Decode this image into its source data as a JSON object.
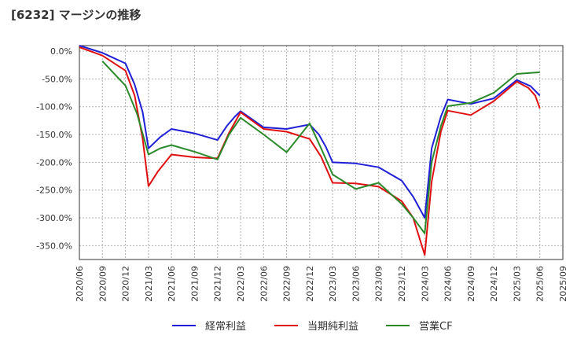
{
  "chart_data": {
    "type": "line",
    "title": "[6232]  マージンの推移",
    "xlabel": "",
    "ylabel": "",
    "ylim": [
      -375,
      10
    ],
    "yticks": [
      0,
      -50,
      -100,
      -150,
      -200,
      -250,
      -300,
      -350
    ],
    "ytick_labels": [
      "0.0%",
      "-50.0%",
      "-100.0%",
      "-150.0%",
      "-200.0%",
      "-250.0%",
      "-300.0%",
      "-350.0%"
    ],
    "x_ticks": [
      "2020/06",
      "2020/09",
      "2020/12",
      "2021/03",
      "2021/06",
      "2021/09",
      "2021/12",
      "2022/03",
      "2022/06",
      "2022/09",
      "2022/12",
      "2023/03",
      "2023/06",
      "2023/09",
      "2023/12",
      "2024/03",
      "2024/06",
      "2024/09",
      "2024/12",
      "2025/03",
      "2025/06",
      "2025/09"
    ],
    "grid": true,
    "legend_position": "bottom",
    "series": [
      {
        "name": "経常利益",
        "color": "#1f1fd6",
        "points": [
          [
            0,
            10
          ],
          [
            1,
            -3
          ],
          [
            2,
            -22
          ],
          [
            2.4,
            -60
          ],
          [
            2.75,
            -110
          ],
          [
            3,
            -175
          ],
          [
            3.5,
            -155
          ],
          [
            4,
            -140
          ],
          [
            5,
            -148
          ],
          [
            6,
            -160
          ],
          [
            6.4,
            -135
          ],
          [
            6.75,
            -118
          ],
          [
            7,
            -108
          ],
          [
            8,
            -137
          ],
          [
            9,
            -140
          ],
          [
            10,
            -132
          ],
          [
            10.4,
            -150
          ],
          [
            10.7,
            -172
          ],
          [
            11,
            -200
          ],
          [
            12,
            -202
          ],
          [
            13,
            -209
          ],
          [
            14,
            -233
          ],
          [
            14.5,
            -262
          ],
          [
            15,
            -300
          ],
          [
            15.3,
            -175
          ],
          [
            15.7,
            -118
          ],
          [
            16,
            -87
          ],
          [
            17,
            -95
          ],
          [
            18,
            -85
          ],
          [
            19,
            -52
          ],
          [
            19.6,
            -63
          ],
          [
            20,
            -80
          ]
        ]
      },
      {
        "name": "当期純利益",
        "color": "#e01010",
        "points": [
          [
            0,
            7
          ],
          [
            1,
            -8
          ],
          [
            2,
            -35
          ],
          [
            2.4,
            -80
          ],
          [
            2.75,
            -158
          ],
          [
            3,
            -243
          ],
          [
            3.4,
            -217
          ],
          [
            4,
            -186
          ],
          [
            5,
            -191
          ],
          [
            6,
            -193
          ],
          [
            6.5,
            -147
          ],
          [
            7,
            -110
          ],
          [
            8,
            -140
          ],
          [
            9,
            -145
          ],
          [
            10,
            -158
          ],
          [
            10.5,
            -190
          ],
          [
            11,
            -237
          ],
          [
            12,
            -238
          ],
          [
            13,
            -244
          ],
          [
            14,
            -270
          ],
          [
            14.5,
            -300
          ],
          [
            15,
            -367
          ],
          [
            15.3,
            -235
          ],
          [
            15.7,
            -145
          ],
          [
            16,
            -107
          ],
          [
            17,
            -115
          ],
          [
            18,
            -90
          ],
          [
            19,
            -55
          ],
          [
            19.5,
            -66
          ],
          [
            19.8,
            -80
          ],
          [
            20,
            -103
          ]
        ]
      },
      {
        "name": "営業CF",
        "color": "#2a8a2a",
        "points": [
          [
            1,
            -18
          ],
          [
            2,
            -62
          ],
          [
            2.5,
            -112
          ],
          [
            3,
            -186
          ],
          [
            3.5,
            -175
          ],
          [
            4,
            -169
          ],
          [
            5,
            -181
          ],
          [
            6,
            -195
          ],
          [
            6.5,
            -150
          ],
          [
            7,
            -120
          ],
          [
            8,
            -150
          ],
          [
            9,
            -182
          ],
          [
            10,
            -130
          ],
          [
            10.5,
            -175
          ],
          [
            11,
            -222
          ],
          [
            12,
            -248
          ],
          [
            13,
            -237
          ],
          [
            14,
            -275
          ],
          [
            14.5,
            -300
          ],
          [
            15,
            -328
          ],
          [
            15.3,
            -200
          ],
          [
            15.7,
            -135
          ],
          [
            16,
            -99
          ],
          [
            17,
            -93
          ],
          [
            18,
            -75
          ],
          [
            19,
            -41
          ],
          [
            20,
            -38
          ]
        ]
      }
    ]
  }
}
